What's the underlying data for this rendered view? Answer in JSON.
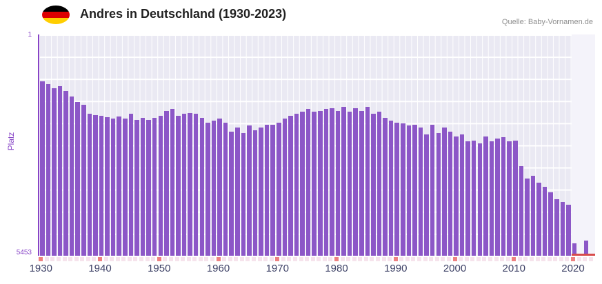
{
  "header": {
    "title": "Andres in Deutschland (1930-2023)",
    "source": "Quelle: Baby-Vornamen.de",
    "flag_colors": [
      "#000000",
      "#dd0000",
      "#ffce00"
    ]
  },
  "chart_data": {
    "type": "bar",
    "title": "Andres in Deutschland (1930-2023)",
    "ylabel": "Platz",
    "y_axis": {
      "top": "1",
      "bottom": "5453",
      "min": 1,
      "max": 5453,
      "inverted": true
    },
    "start_year": 1930,
    "end_year": 2023,
    "x_tick_labels": [
      "1930",
      "1940",
      "1950",
      "1960",
      "1970",
      "1980",
      "1990",
      "2000",
      "2010",
      "2020"
    ],
    "values": [
      1160,
      1230,
      1330,
      1280,
      1400,
      1530,
      1670,
      1740,
      1960,
      1990,
      2010,
      2040,
      2080,
      2030,
      2080,
      1960,
      2110,
      2060,
      2110,
      2050,
      2010,
      1880,
      1840,
      2010,
      1960,
      1930,
      1960,
      2050,
      2180,
      2130,
      2080,
      2180,
      2390,
      2300,
      2430,
      2250,
      2360,
      2300,
      2220,
      2230,
      2180,
      2080,
      2010,
      1960,
      1910,
      1840,
      1910,
      1880,
      1840,
      1820,
      1880,
      1790,
      1910,
      1820,
      1880,
      1790,
      1960,
      1910,
      2060,
      2130,
      2180,
      2190,
      2250,
      2220,
      2300,
      2470,
      2230,
      2430,
      2300,
      2390,
      2520,
      2470,
      2640,
      2610,
      2690,
      2510,
      2640,
      2560,
      2530,
      2640,
      2610,
      3240,
      3550,
      3490,
      3660,
      3750,
      3890,
      4060,
      4130,
      4190,
      5150,
      5420,
      5080,
      null
    ],
    "no_rank_years": [
      2023
    ],
    "recent_band_start_year": 2020,
    "grid": true,
    "legend": false,
    "colors": {
      "bar": "#8c57c7",
      "axis": "#8744c6",
      "axis_labels": "#8744c6",
      "x_labels": "#3d4166",
      "plot_bg": "#eae9f3",
      "band_bg": "#f4f3fa",
      "grid": "#ffffff",
      "decade_tick": "#ee8181",
      "minor_tick": "#f6e3ec",
      "unranked_line": "#d84b4b"
    }
  }
}
